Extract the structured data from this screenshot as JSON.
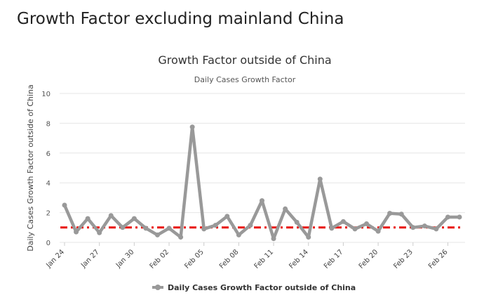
{
  "page": {
    "heading": "Growth Factor excluding mainland China"
  },
  "chart_data": {
    "type": "line",
    "title": "Growth Factor outside of China",
    "subtitle": "Daily Cases Growth Factor",
    "ylabel": "Daily Cases Growth Factor outside of China",
    "xlabel": "",
    "ylim": [
      0,
      10
    ],
    "yticks": [
      0,
      2,
      4,
      6,
      8,
      10
    ],
    "grid": true,
    "legend_position": "bottom-center",
    "x": [
      "Jan 24",
      "Jan 25",
      "Jan 26",
      "Jan 27",
      "Jan 28",
      "Jan 29",
      "Jan 30",
      "Jan 31",
      "Feb 01",
      "Feb 02",
      "Feb 03",
      "Feb 04",
      "Feb 05",
      "Feb 06",
      "Feb 07",
      "Feb 08",
      "Feb 09",
      "Feb 10",
      "Feb 11",
      "Feb 12",
      "Feb 13",
      "Feb 14",
      "Feb 15",
      "Feb 16",
      "Feb 17",
      "Feb 18",
      "Feb 19",
      "Feb 20",
      "Feb 21",
      "Feb 22",
      "Feb 23",
      "Feb 24",
      "Feb 25",
      "Feb 26",
      "Feb 27"
    ],
    "xtick_labels": [
      "Jan 24",
      "Jan 27",
      "Jan 30",
      "Feb 02",
      "Feb 05",
      "Feb 08",
      "Feb 11",
      "Feb 14",
      "Feb 17",
      "Feb 20",
      "Feb 23",
      "Feb 26"
    ],
    "series": [
      {
        "name": "Daily Cases Growth Factor outside of China",
        "color": "#999999",
        "values": [
          2.5,
          0.7,
          1.6,
          0.65,
          1.8,
          1.0,
          1.6,
          0.95,
          0.5,
          0.95,
          0.35,
          7.75,
          0.9,
          1.15,
          1.75,
          0.5,
          1.15,
          2.8,
          0.25,
          2.25,
          1.35,
          0.35,
          4.25,
          0.95,
          1.4,
          0.9,
          1.25,
          0.75,
          1.95,
          1.9,
          1.0,
          1.1,
          0.9,
          1.7,
          1.7
        ]
      }
    ],
    "reference_line": {
      "value": 1,
      "color": "#e8120c",
      "style": "dash-dot"
    }
  }
}
